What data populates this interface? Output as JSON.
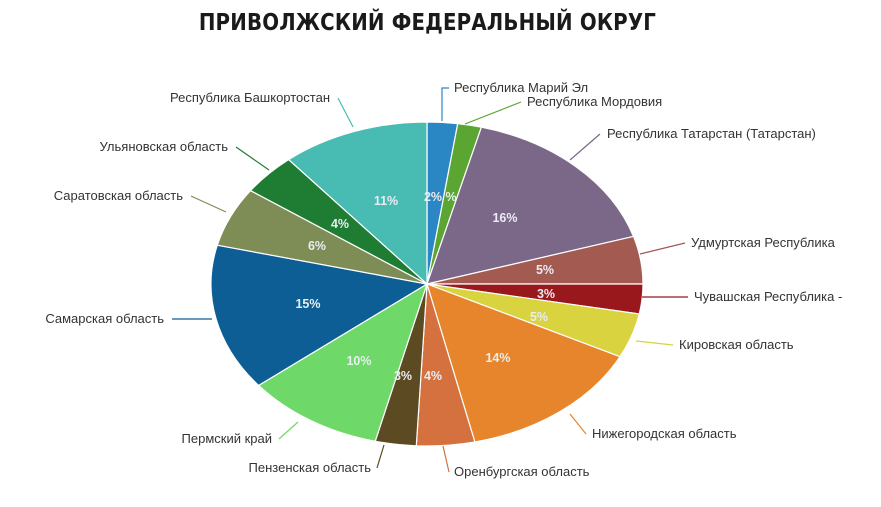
{
  "chart_data": {
    "type": "pie",
    "title": "ПРИВОЛЖСКИЙ ФЕДЕРАЛЬНЫЙ ОКРУГ",
    "categories": [
      "Республика Марий Эл",
      "Республика Мордовия",
      "Республика Татарстан (Татарстан)",
      "Удмуртская Республика",
      "Чувашская Республика -",
      "Кировская область",
      "Нижегородская область",
      "Оренбургская область",
      "Пензенская область",
      "Пермский край",
      "Самарская область",
      "Саратовская область",
      "Ульяновская область",
      "Республика Башкортостан"
    ],
    "values": [
      2.3,
      1.8,
      16.4,
      4.8,
      3.0,
      4.5,
      14.2,
      4.4,
      3.1,
      10.5,
      14.8,
      6.0,
      4.2,
      11.2
    ],
    "labels": [
      "2%",
      "",
      "16%",
      "5%",
      "3%",
      "5%",
      "14%",
      "4%",
      "3%",
      "10%",
      "15%",
      "6%",
      "4%",
      "11%"
    ],
    "second_slice_label": "%",
    "colors": [
      "#2b86c4",
      "#5ba532",
      "#7b6889",
      "#a35a50",
      "#98181b",
      "#d8d33e",
      "#e6852b",
      "#d4713f",
      "#5c4b22",
      "#6ed868",
      "#0c5e94",
      "#7e8c56",
      "#1f7c33",
      "#48bbb3"
    ]
  }
}
